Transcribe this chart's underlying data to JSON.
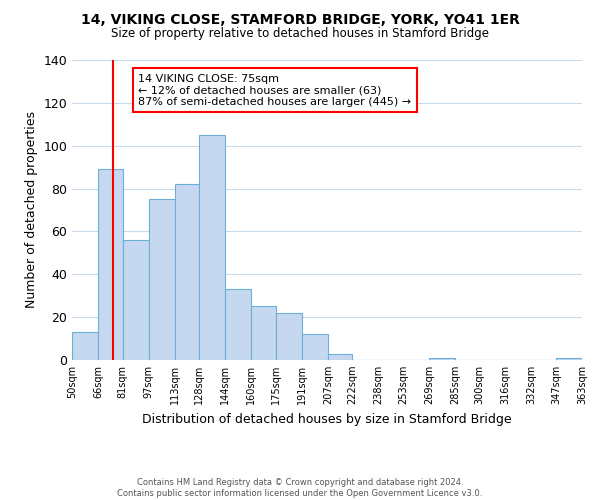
{
  "title_line1": "14, VIKING CLOSE, STAMFORD BRIDGE, YORK, YO41 1ER",
  "title_line2": "Size of property relative to detached houses in Stamford Bridge",
  "xlabel": "Distribution of detached houses by size in Stamford Bridge",
  "ylabel": "Number of detached properties",
  "bar_left_edges": [
    50,
    66,
    81,
    97,
    113,
    128,
    144,
    160,
    175,
    191,
    207,
    222,
    238,
    253,
    269,
    285,
    300,
    316,
    332,
    347
  ],
  "bar_heights": [
    13,
    89,
    56,
    75,
    82,
    105,
    33,
    25,
    22,
    12,
    3,
    0,
    0,
    0,
    1,
    0,
    0,
    0,
    0,
    1
  ],
  "bar_color": "#c5d8f0",
  "bar_edgecolor": "#6baed6",
  "reference_line_x": 75,
  "reference_line_color": "red",
  "ylim": [
    0,
    140
  ],
  "yticks": [
    0,
    20,
    40,
    60,
    80,
    100,
    120,
    140
  ],
  "tick_labels": [
    "50sqm",
    "66sqm",
    "81sqm",
    "97sqm",
    "113sqm",
    "128sqm",
    "144sqm",
    "160sqm",
    "175sqm",
    "191sqm",
    "207sqm",
    "222sqm",
    "238sqm",
    "253sqm",
    "269sqm",
    "285sqm",
    "300sqm",
    "316sqm",
    "332sqm",
    "347sqm",
    "363sqm"
  ],
  "annotation_title": "14 VIKING CLOSE: 75sqm",
  "annotation_line1": "← 12% of detached houses are smaller (63)",
  "annotation_line2": "87% of semi-detached houses are larger (445) →",
  "footer_line1": "Contains HM Land Registry data © Crown copyright and database right 2024.",
  "footer_line2": "Contains public sector information licensed under the Open Government Licence v3.0.",
  "background_color": "#ffffff",
  "grid_color": "#c8daf0"
}
